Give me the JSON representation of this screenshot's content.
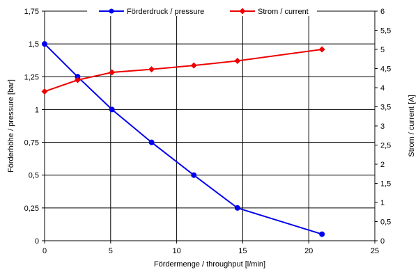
{
  "chart_data": {
    "type": "line",
    "xlabel": "Fördermenge / throughput [l/min]",
    "ylabel": "Förderhöhe / pressure [bar]",
    "y2label": "Strom / current [A]",
    "xlim": [
      0,
      25
    ],
    "ylim": [
      0,
      1.75
    ],
    "y2lim": [
      0,
      6
    ],
    "xticks": [
      "0",
      "5",
      "10",
      "15",
      "20",
      "25"
    ],
    "yticks": [
      "0",
      "0,25",
      "0,5",
      "0,75",
      "1",
      "1,25",
      "1,5",
      "1,75"
    ],
    "y2ticks": [
      "0",
      "0,5",
      "1",
      "1,5",
      "2",
      "2,5",
      "3",
      "3,5",
      "4",
      "4,5",
      "5",
      "5,5",
      "6"
    ],
    "grid": true,
    "legend_position": "top",
    "series": [
      {
        "name": "Förderdruck / pressure",
        "axis": "left",
        "color": "#0000ee",
        "marker": "circle",
        "points": [
          [
            0,
            1.5
          ],
          [
            2.5,
            1.25
          ],
          [
            5.1,
            1.0
          ],
          [
            8.1,
            0.75
          ],
          [
            11.3,
            0.5
          ],
          [
            14.6,
            0.25
          ],
          [
            21.0,
            0.05
          ]
        ]
      },
      {
        "name": "Strom / current",
        "axis": "right",
        "color": "#ee0000",
        "marker": "diamond",
        "points": [
          [
            0,
            3.9
          ],
          [
            2.5,
            4.2
          ],
          [
            5.1,
            4.4
          ],
          [
            8.1,
            4.48
          ],
          [
            11.3,
            4.58
          ],
          [
            14.6,
            4.7
          ],
          [
            21.0,
            5.0
          ]
        ]
      }
    ]
  }
}
